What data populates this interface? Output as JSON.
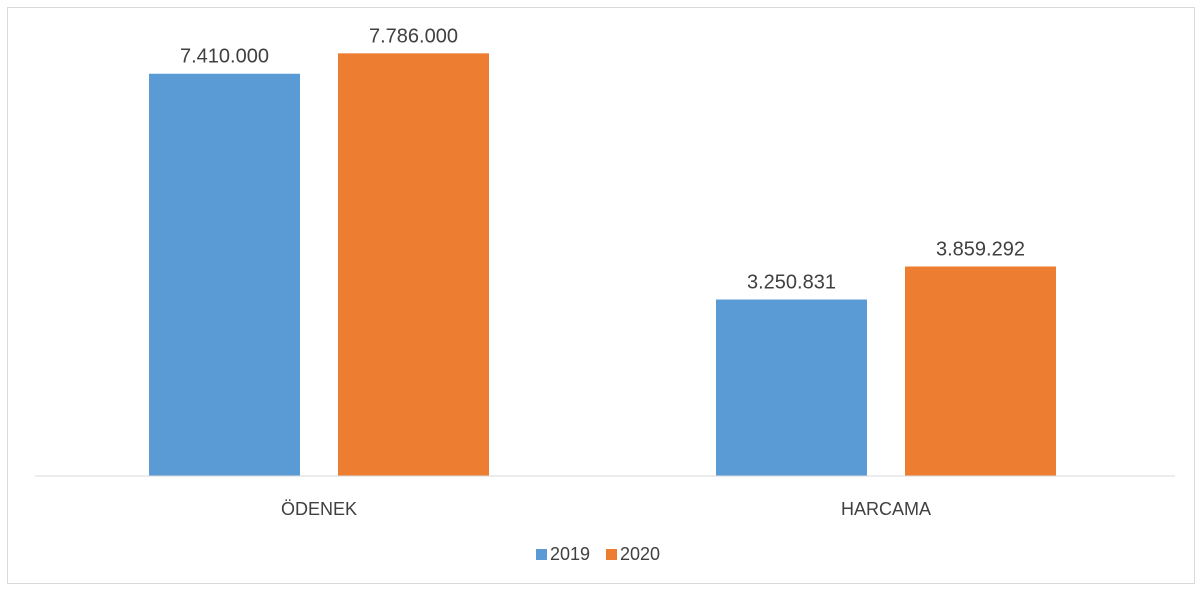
{
  "chart_data": {
    "type": "bar",
    "categories": [
      "ÖDENEK",
      "HARCAMA"
    ],
    "series": [
      {
        "name": "2019",
        "values": [
          7410000,
          3250831
        ],
        "labels": [
          "7.410.000",
          "3.250.831"
        ],
        "color": "#5b9bd5"
      },
      {
        "name": "2020",
        "values": [
          7786000,
          3859292
        ],
        "labels": [
          "7.786.000",
          "3.859.292"
        ],
        "color": "#ed7d31"
      }
    ],
    "ylim": [
      0,
      8400000
    ],
    "grid": false,
    "legend": "bottom-center",
    "axis_color": "#d9d9d9"
  }
}
